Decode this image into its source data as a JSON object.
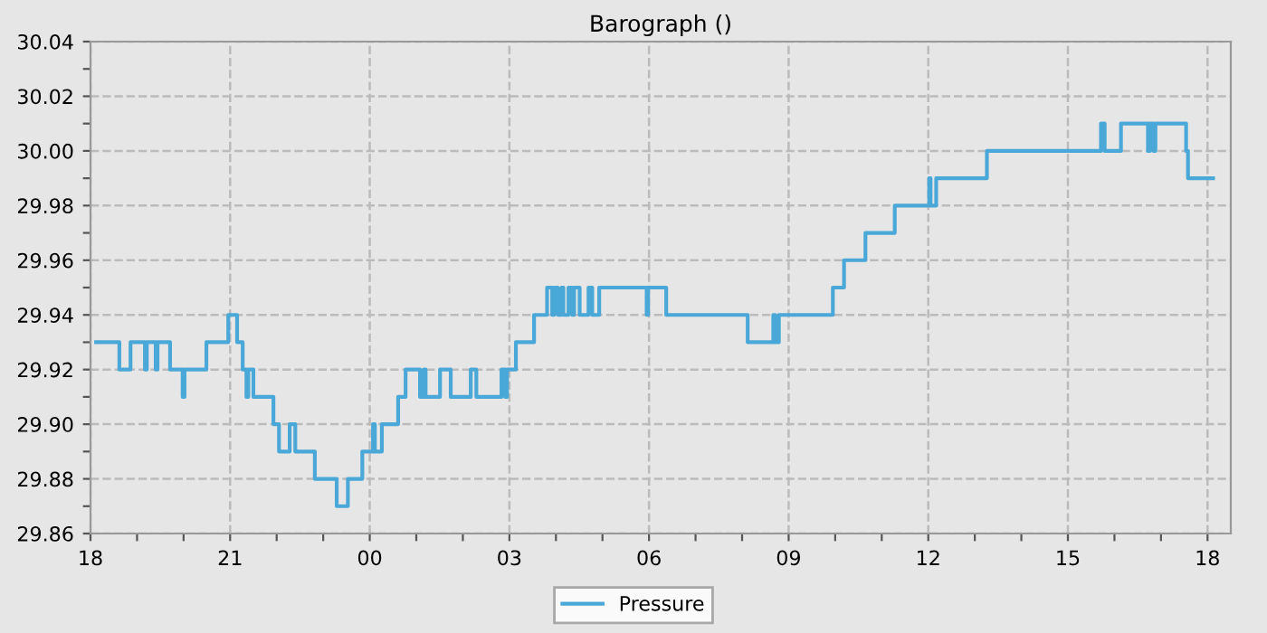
{
  "chart_data": {
    "type": "step",
    "title": "Barograph ()",
    "x": [
      18.12,
      18.62,
      18.86,
      19.17,
      19.21,
      19.4,
      19.44,
      19.71,
      19.98,
      20.02,
      20.49,
      20.96,
      21.15,
      21.27,
      21.35,
      21.39,
      21.5,
      21.93,
      22.05,
      22.28,
      22.4,
      22.82,
      23.29,
      23.53,
      23.84,
      24.07,
      24.11,
      24.26,
      24.61,
      24.77,
      25.08,
      25.16,
      25.2,
      25.51,
      25.74,
      26.17,
      26.29,
      26.83,
      26.91,
      26.95,
      27.14,
      27.53,
      27.81,
      27.92,
      27.96,
      28.04,
      28.12,
      28.16,
      28.27,
      28.35,
      28.39,
      28.51,
      28.7,
      28.78,
      28.93,
      29.95,
      29.98,
      30.37,
      32.12,
      32.67,
      32.71,
      32.79,
      33.95,
      34.19,
      34.65,
      35.28,
      36.02,
      36.05,
      36.17,
      37.26,
      39.71,
      39.79,
      40.14,
      40.72,
      40.76,
      40.84,
      40.88,
      41.54,
      41.58,
      42.12
    ],
    "series": [
      {
        "name": "Pressure",
        "color": "#4aa8d8",
        "values": [
          29.93,
          29.92,
          29.93,
          29.92,
          29.93,
          29.92,
          29.93,
          29.92,
          29.91,
          29.92,
          29.93,
          29.94,
          29.93,
          29.92,
          29.91,
          29.92,
          29.91,
          29.9,
          29.89,
          29.9,
          29.89,
          29.88,
          29.87,
          29.88,
          29.89,
          29.9,
          29.89,
          29.9,
          29.91,
          29.92,
          29.91,
          29.92,
          29.91,
          29.92,
          29.91,
          29.92,
          29.91,
          29.92,
          29.91,
          29.92,
          29.93,
          29.94,
          29.95,
          29.94,
          29.95,
          29.94,
          29.95,
          29.94,
          29.95,
          29.94,
          29.95,
          29.94,
          29.95,
          29.94,
          29.95,
          29.94,
          29.95,
          29.94,
          29.93,
          29.94,
          29.93,
          29.94,
          29.95,
          29.96,
          29.97,
          29.98,
          29.99,
          29.98,
          29.99,
          30.0,
          30.01,
          30.0,
          30.01,
          30.0,
          30.01,
          30.0,
          30.01,
          30.0,
          29.99,
          29.99
        ]
      }
    ],
    "xlim": [
      18,
      42.5
    ],
    "xticks": [
      {
        "value": 18,
        "label": "18"
      },
      {
        "value": 19,
        "label": null
      },
      {
        "value": 20,
        "label": null
      },
      {
        "value": 21,
        "label": "21"
      },
      {
        "value": 22,
        "label": null
      },
      {
        "value": 23,
        "label": null
      },
      {
        "value": 24,
        "label": "00"
      },
      {
        "value": 25,
        "label": null
      },
      {
        "value": 26,
        "label": null
      },
      {
        "value": 27,
        "label": "03"
      },
      {
        "value": 28,
        "label": null
      },
      {
        "value": 29,
        "label": null
      },
      {
        "value": 30,
        "label": "06"
      },
      {
        "value": 31,
        "label": null
      },
      {
        "value": 32,
        "label": null
      },
      {
        "value": 33,
        "label": "09"
      },
      {
        "value": 34,
        "label": null
      },
      {
        "value": 35,
        "label": null
      },
      {
        "value": 36,
        "label": "12"
      },
      {
        "value": 37,
        "label": null
      },
      {
        "value": 38,
        "label": null
      },
      {
        "value": 39,
        "label": "15"
      },
      {
        "value": 40,
        "label": null
      },
      {
        "value": 41,
        "label": null
      },
      {
        "value": 42,
        "label": "18"
      }
    ],
    "ylim": [
      29.86,
      30.04
    ],
    "yticks": [
      {
        "value": 29.86,
        "label": "29.86"
      },
      {
        "value": 29.87,
        "label": null
      },
      {
        "value": 29.88,
        "label": "29.88"
      },
      {
        "value": 29.89,
        "label": null
      },
      {
        "value": 29.9,
        "label": "29.90"
      },
      {
        "value": 29.91,
        "label": null
      },
      {
        "value": 29.92,
        "label": "29.92"
      },
      {
        "value": 29.93,
        "label": null
      },
      {
        "value": 29.94,
        "label": "29.94"
      },
      {
        "value": 29.95,
        "label": null
      },
      {
        "value": 29.96,
        "label": "29.96"
      },
      {
        "value": 29.97,
        "label": null
      },
      {
        "value": 29.98,
        "label": "29.98"
      },
      {
        "value": 29.99,
        "label": null
      },
      {
        "value": 30.0,
        "label": "30.00"
      },
      {
        "value": 30.01,
        "label": null
      },
      {
        "value": 30.02,
        "label": "30.02"
      },
      {
        "value": 30.03,
        "label": null
      },
      {
        "value": 30.04,
        "label": "30.04"
      }
    ],
    "grid": true,
    "legend": "bottom",
    "line_style": "solid",
    "marker": "none"
  }
}
